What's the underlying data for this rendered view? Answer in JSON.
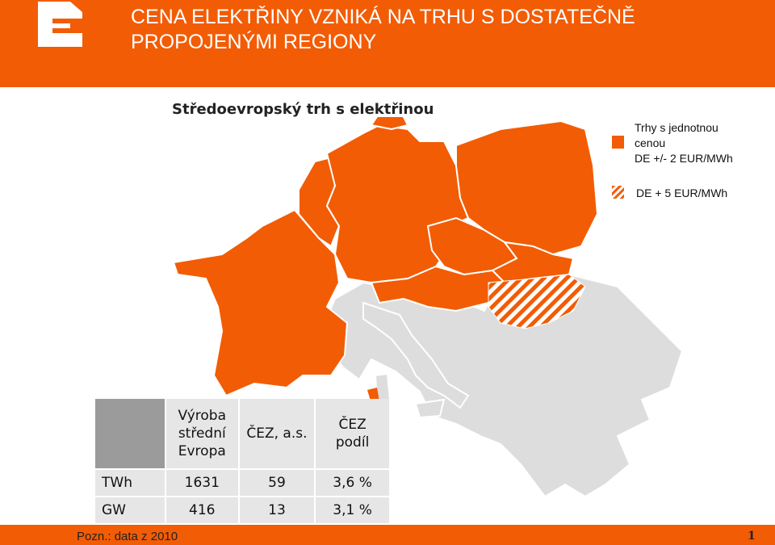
{
  "header": {
    "title_line1": "CENA ELEKTŘINY VZNIKÁ NA TRHU S DOSTATEČNĚ",
    "title_line2": "PROPOJENÝMI REGIONY"
  },
  "map": {
    "subtitle": "Středoevropský trh s elektřinou"
  },
  "legend": {
    "single_price": [
      "Trhy s jednotnou",
      "cenou",
      "DE +/- 2 EUR/MWh"
    ],
    "plus5": "DE + 5 EUR/MWh"
  },
  "table": {
    "headers": [
      [
        "Výroba",
        "střední",
        "Evropa"
      ],
      [
        "ČEZ, a.s."
      ],
      [
        "ČEZ",
        "podíl"
      ]
    ],
    "rows": [
      {
        "label": "TWh",
        "values": [
          "1631",
          "59",
          "3,6 %"
        ]
      },
      {
        "label": "GW",
        "values": [
          "416",
          "13",
          "3,1 %"
        ]
      }
    ]
  },
  "footer": {
    "note": "Pozn.: data z 2010",
    "page": "1"
  },
  "colors": {
    "brand": "#f25c05",
    "map_gray": "#dddddd",
    "table_bg": "#e6e6e6",
    "table_corner": "#9b9b9b"
  }
}
